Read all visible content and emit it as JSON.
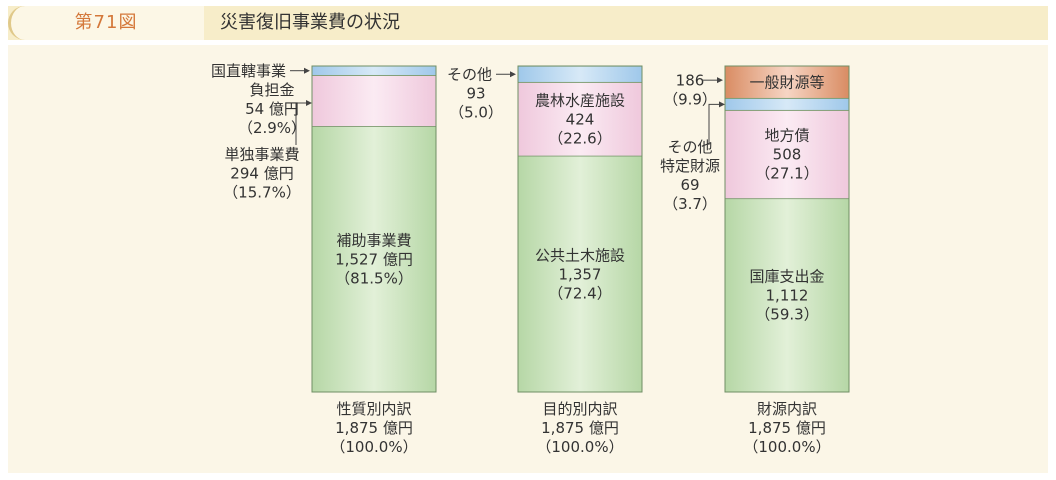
{
  "header": {
    "figure_number": "第71図",
    "title": "災害復旧事業費の状況"
  },
  "chart_data": {
    "type": "bar",
    "stacked": true,
    "unit": "億円",
    "columns": [
      {
        "id": "nature",
        "label_lines": [
          "性質別内訳",
          "1,875 億円",
          "（100.0%）"
        ],
        "total": 1875,
        "segments": [
          {
            "name": "補助事業費",
            "value": 1527,
            "pct": 81.5,
            "color": "#c9e2bd",
            "label_lines": [
              "補助事業費",
              "1,527 億円",
              "（81.5%）"
            ],
            "label_side": "inside"
          },
          {
            "name": "単独事業費",
            "value": 294,
            "pct": 15.7,
            "color": "#f5dbe9",
            "label_lines": [
              "単独事業費",
              "294 億円",
              "（15.7%）"
            ],
            "label_side": "left"
          },
          {
            "name": "国直轄事業負担金",
            "value": 54,
            "pct": 2.9,
            "color": "#bcd9f0",
            "label_lines": [
              "国直轄事業",
              "負担金",
              "54 億円",
              "（2.9%）"
            ],
            "label_side": "left"
          }
        ]
      },
      {
        "id": "purpose",
        "label_lines": [
          "目的別内訳",
          "1,875 億円",
          "（100.0%）"
        ],
        "total": 1875,
        "segments": [
          {
            "name": "公共土木施設",
            "value": 1357,
            "pct": 72.4,
            "color": "#c9e2bd",
            "label_lines": [
              "公共土木施設",
              "1,357",
              "（72.4）"
            ],
            "label_side": "inside"
          },
          {
            "name": "農林水産施設",
            "value": 424,
            "pct": 22.6,
            "color": "#f5dbe9",
            "label_lines": [
              "農林水産施設",
              "424",
              "（22.6）"
            ],
            "label_side": "inside"
          },
          {
            "name": "その他",
            "value": 93,
            "pct": 5.0,
            "color": "#bcd9f0",
            "label_lines": [
              "その他",
              "93",
              "（5.0）"
            ],
            "label_side": "left"
          }
        ]
      },
      {
        "id": "source",
        "label_lines": [
          "財源内訳",
          "1,875 億円",
          "（100.0%）"
        ],
        "total": 1875,
        "segments": [
          {
            "name": "国庫支出金",
            "value": 1112,
            "pct": 59.3,
            "color": "#c9e2bd",
            "label_lines": [
              "国庫支出金",
              "1,112",
              "（59.3）"
            ],
            "label_side": "inside"
          },
          {
            "name": "地方債",
            "value": 508,
            "pct": 27.1,
            "color": "#f5dbe9",
            "label_lines": [
              "地方債",
              "508",
              "（27.1）"
            ],
            "label_side": "inside"
          },
          {
            "name": "その他特定財源",
            "value": 69,
            "pct": 3.7,
            "color": "#bcd9f0",
            "label_lines": [
              "その他",
              "特定財源",
              "69",
              "（3.7）"
            ],
            "label_side": "left"
          },
          {
            "name": "一般財源等",
            "value": 186,
            "pct": 9.9,
            "color": "#e7a98a",
            "label_lines": [
              "一般財源等"
            ],
            "label_side": "inside",
            "outside_lines": [
              "186",
              "（9.9）"
            ]
          }
        ]
      }
    ]
  }
}
